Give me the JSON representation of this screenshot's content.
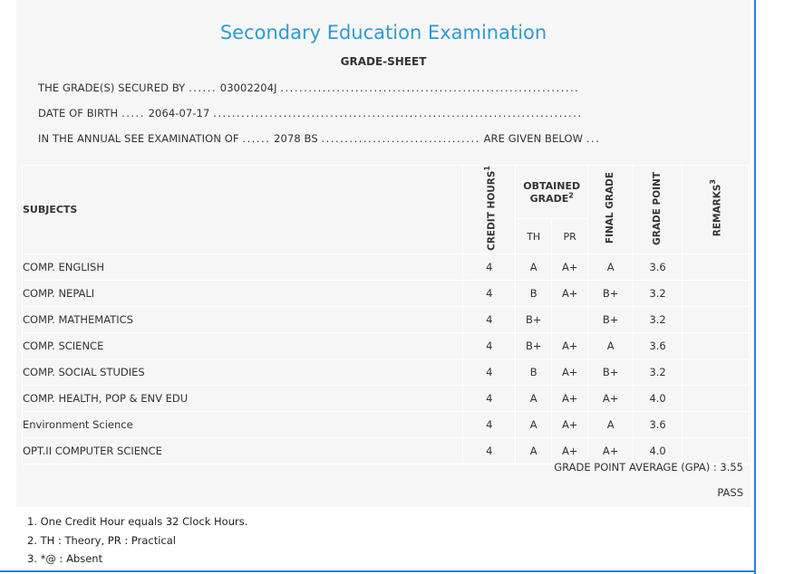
{
  "header": {
    "title": "Secondary Education Examination",
    "subtitle": "GRADE-SHEET"
  },
  "info": {
    "secured_by_label": "THE GRADE(S) SECURED BY",
    "symbol_no": "03002204J",
    "dob_label": "DATE OF BIRTH",
    "dob": "2064-07-17",
    "exam_label": "IN THE ANNUAL SEE EXAMINATION OF",
    "exam_year": "2078 BS",
    "given_below": "ARE GIVEN BELOW"
  },
  "table": {
    "headers": {
      "subjects": "SUBJECTS",
      "credit_hours": "CREDIT HOURS",
      "credit_sup": "1",
      "obtained_grade": "OBTAINED GRADE",
      "obtained_sup": "2",
      "th": "TH",
      "pr": "PR",
      "final_grade": "FINAL GRADE",
      "grade_point": "GRADE POINT",
      "remarks": "REMARKS",
      "remarks_sup": "3"
    },
    "rows": [
      {
        "subject": "COMP. ENGLISH",
        "credit": "4",
        "th": "A",
        "pr": "A+",
        "final": "A",
        "gp": "3.6",
        "remarks": ""
      },
      {
        "subject": "COMP. NEPALI",
        "credit": "4",
        "th": "B",
        "pr": "A+",
        "final": "B+",
        "gp": "3.2",
        "remarks": ""
      },
      {
        "subject": "COMP. MATHEMATICS",
        "credit": "4",
        "th": "B+",
        "pr": "",
        "final": "B+",
        "gp": "3.2",
        "remarks": ""
      },
      {
        "subject": "COMP. SCIENCE",
        "credit": "4",
        "th": "B+",
        "pr": "A+",
        "final": "A",
        "gp": "3.6",
        "remarks": ""
      },
      {
        "subject": "COMP. SOCIAL STUDIES",
        "credit": "4",
        "th": "B",
        "pr": "A+",
        "final": "B+",
        "gp": "3.2",
        "remarks": ""
      },
      {
        "subject": "COMP. HEALTH, POP & ENV EDU",
        "credit": "4",
        "th": "A",
        "pr": "A+",
        "final": "A+",
        "gp": "4.0",
        "remarks": ""
      },
      {
        "subject": "Environment Science",
        "credit": "4",
        "th": "A",
        "pr": "A+",
        "final": "A",
        "gp": "3.6",
        "remarks": ""
      },
      {
        "subject": "OPT.II COMPUTER SCIENCE",
        "credit": "4",
        "th": "A",
        "pr": "A+",
        "final": "A+",
        "gp": "4.0",
        "remarks": ""
      }
    ]
  },
  "summary": {
    "gpa_label": "GRADE POINT AVERAGE (GPA) :",
    "gpa": "3.55",
    "result": "PASS"
  },
  "notes": [
    "1. One Credit Hour equals 32 Clock Hours.",
    "2. TH : Theory, PR : Practical",
    "3. *@ : Absent"
  ],
  "colors": {
    "title": "#2e9bd6",
    "frame": "#2a7fd4",
    "sheet_bg": "#f6f6f6"
  }
}
